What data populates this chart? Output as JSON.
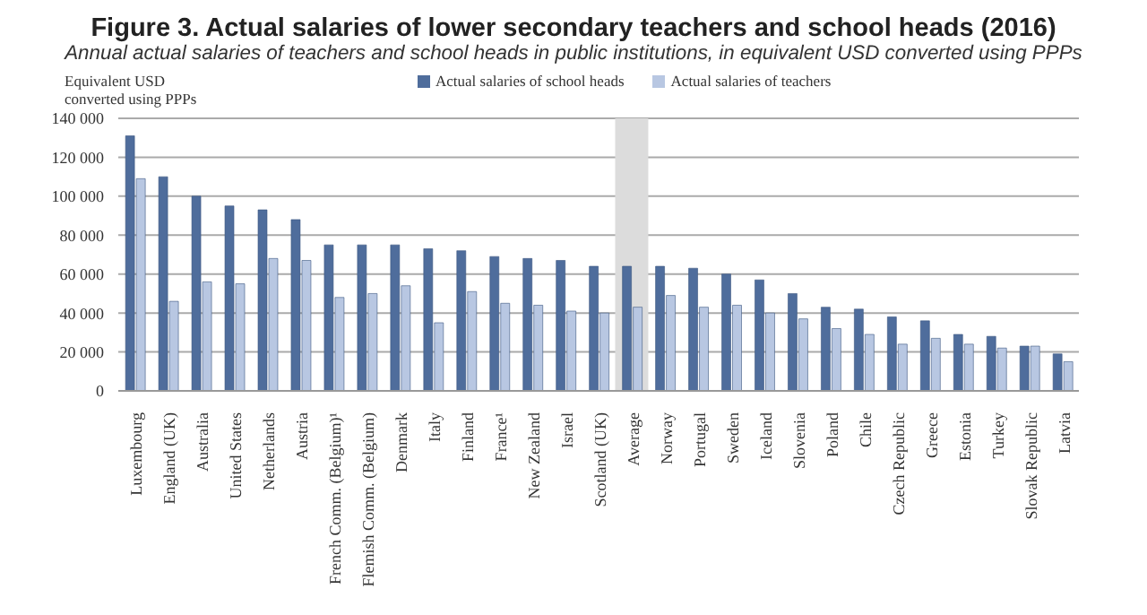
{
  "chart_data": {
    "type": "bar",
    "title": "Figure 3. Actual salaries of lower secondary teachers and school heads (2016)",
    "subtitle": "Annual actual salaries of teachers and school heads in public institutions, in equivalent USD converted using PPPs",
    "ylabel": "Equivalent USD converted using PPPs",
    "categories": [
      "Luxembourg",
      "England (UK)",
      "Australia",
      "United States",
      "Netherlands",
      "Austria",
      "French Comm. (Belgium)¹",
      "Flemish Comm. (Belgium)",
      "Denmark",
      "Italy",
      "Finland",
      "France¹",
      "New Zealand",
      "Israel",
      "Scotland (UK)",
      "Average",
      "Norway",
      "Portugal",
      "Sweden",
      "Iceland",
      "Slovenia",
      "Poland",
      "Chile",
      "Czech Republic",
      "Greece",
      "Estonia",
      "Turkey",
      "Slovak Republic",
      "Latvia"
    ],
    "series": [
      {
        "name": "Actual salaries of school heads",
        "color": "#4f6d9c",
        "values": [
          131000,
          110000,
          100000,
          95000,
          93000,
          88000,
          75000,
          75000,
          75000,
          73000,
          72000,
          69000,
          68000,
          67000,
          64000,
          64000,
          64000,
          63000,
          60000,
          57000,
          50000,
          43000,
          42000,
          38000,
          36000,
          29000,
          28000,
          23000,
          19000
        ]
      },
      {
        "name": "Actual salaries of teachers",
        "color": "#b8c7e2",
        "values": [
          109000,
          46000,
          56000,
          55000,
          68000,
          67000,
          48000,
          50000,
          54000,
          35000,
          51000,
          45000,
          44000,
          41000,
          40000,
          43000,
          49000,
          43000,
          44000,
          40000,
          37000,
          32000,
          29000,
          24000,
          27000,
          24000,
          22000,
          23000,
          15000
        ]
      }
    ],
    "ylim": [
      0,
      140000
    ],
    "yticks": [
      {
        "value": 0,
        "label": "0"
      },
      {
        "value": 20000,
        "label": "20 000"
      },
      {
        "value": 40000,
        "label": "40 000"
      },
      {
        "value": 60000,
        "label": "60 000"
      },
      {
        "value": 80000,
        "label": "80 000"
      },
      {
        "value": 100000,
        "label": "100 000"
      },
      {
        "value": 120000,
        "label": "120 000"
      },
      {
        "value": 140000,
        "label": "140 000"
      }
    ],
    "grid": "y",
    "legend": "top right",
    "bands": [
      {
        "axis": "x",
        "from": "Average",
        "to": "Average",
        "color": "#dcdcdc"
      }
    ]
  }
}
